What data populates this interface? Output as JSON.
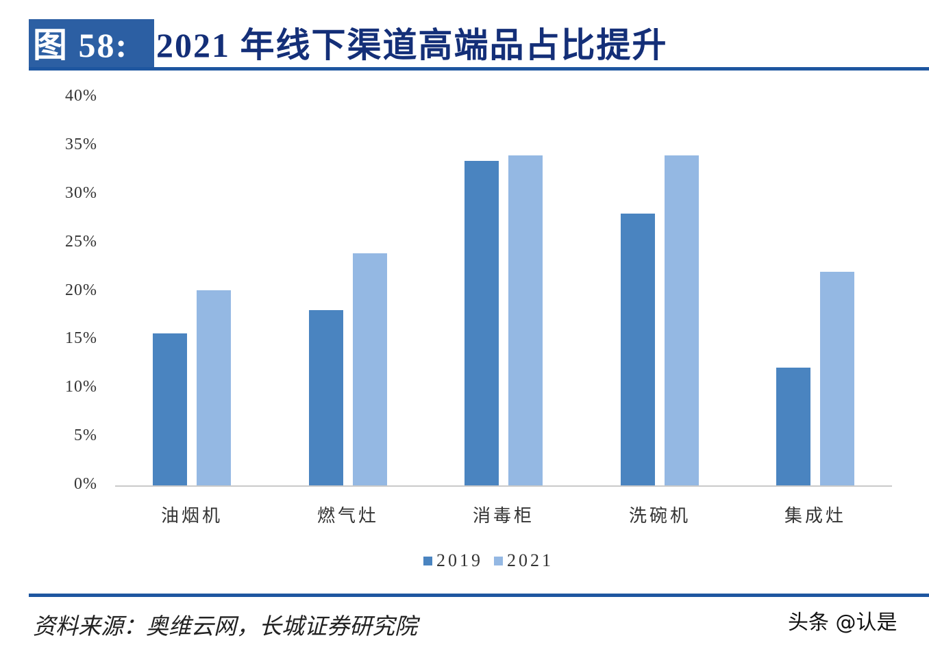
{
  "header": {
    "figure_label": "图 58:",
    "title": "2021 年线下渠道高端品占比提升"
  },
  "footer": {
    "source": "资料来源：奥维云网，长城证券研究院",
    "watermark": "头条 @认是"
  },
  "colors": {
    "series_2019": "#4a84c0",
    "series_2021": "#94b8e3",
    "title_box": "#2c5fa3",
    "title_text": "#142f78",
    "rule": "#1e56a0"
  },
  "chart_data": {
    "type": "bar",
    "title": "2021 年线下渠道高端品占比提升",
    "xlabel": "",
    "ylabel": "",
    "ylim": [
      0,
      40
    ],
    "yticks": [
      "0%",
      "5%",
      "10%",
      "15%",
      "20%",
      "25%",
      "30%",
      "35%",
      "40%"
    ],
    "grid": false,
    "legend_position": "bottom",
    "categories": [
      "油烟机",
      "燃气灶",
      "消毒柜",
      "洗碗机",
      "集成灶"
    ],
    "series": [
      {
        "name": "2019",
        "values": [
          15.7,
          18.1,
          33.5,
          28.1,
          12.2
        ]
      },
      {
        "name": "2021",
        "values": [
          20.2,
          24.0,
          34.1,
          34.1,
          22.1
        ]
      }
    ]
  }
}
